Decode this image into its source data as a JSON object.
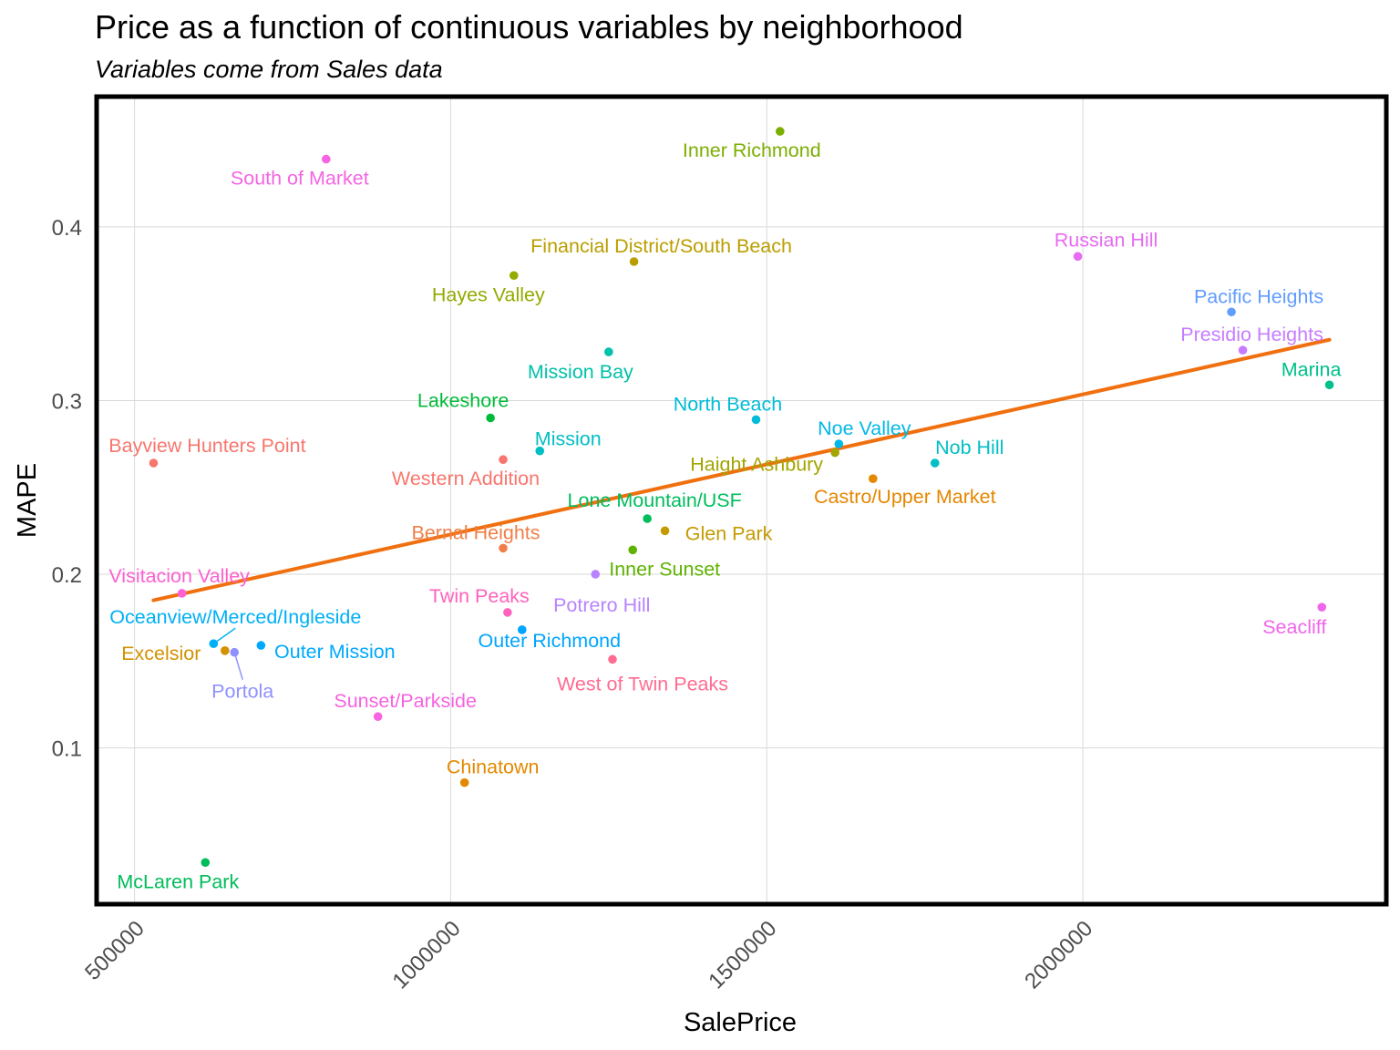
{
  "chart_data": {
    "type": "scatter",
    "title": "Price as a function of continuous variables by neighborhood",
    "subtitle": "Variables come from Sales data",
    "xlabel": "SalePrice",
    "ylabel": "MAPE",
    "xlim": [
      440000,
      2480000
    ],
    "ylim": [
      0.01,
      0.475
    ],
    "x_ticks": [
      500000,
      1000000,
      1500000,
      2000000
    ],
    "x_tick_labels": [
      "500000",
      "1000000",
      "1500000",
      "2000000"
    ],
    "y_ticks": [
      0.1,
      0.2,
      0.3,
      0.4
    ],
    "y_tick_labels": [
      "0.1",
      "0.2",
      "0.3",
      "0.4"
    ],
    "grid": true,
    "legend": "none",
    "trend_line": {
      "color": "#f07010",
      "x": [
        530000,
        2390000
      ],
      "y": [
        0.185,
        0.335
      ]
    },
    "points": [
      {
        "name": "Bayview Hunters Point",
        "x": 530000,
        "y": 0.264,
        "color": "#F8766D"
      },
      {
        "name": "Visitacion Valley",
        "x": 575000,
        "y": 0.189,
        "color": "#FD61D1"
      },
      {
        "name": "Oceanview/Merced/Ingleside",
        "x": 625000,
        "y": 0.16,
        "color": "#00B0F6"
      },
      {
        "name": "Excelsior",
        "x": 643000,
        "y": 0.156,
        "color": "#D39200"
      },
      {
        "name": "Portola",
        "x": 658000,
        "y": 0.155,
        "color": "#8F91FF"
      },
      {
        "name": "Outer Mission",
        "x": 700000,
        "y": 0.159,
        "color": "#00A9FF"
      },
      {
        "name": "McLaren Park",
        "x": 612000,
        "y": 0.034,
        "color": "#00BC59"
      },
      {
        "name": "South of Market",
        "x": 803000,
        "y": 0.439,
        "color": "#F564E3"
      },
      {
        "name": "Sunset/Parkside",
        "x": 885000,
        "y": 0.118,
        "color": "#F763E0"
      },
      {
        "name": "Chinatown",
        "x": 1022000,
        "y": 0.08,
        "color": "#E38900"
      },
      {
        "name": "Lakeshore",
        "x": 1063000,
        "y": 0.29,
        "color": "#00BA38"
      },
      {
        "name": "Western Addition",
        "x": 1083000,
        "y": 0.266,
        "color": "#F8766D"
      },
      {
        "name": "Bernal Heights",
        "x": 1083000,
        "y": 0.215,
        "color": "#EF7F49"
      },
      {
        "name": "Twin Peaks",
        "x": 1090000,
        "y": 0.178,
        "color": "#FF62BC"
      },
      {
        "name": "Hayes Valley",
        "x": 1100000,
        "y": 0.372,
        "color": "#93AA00"
      },
      {
        "name": "Outer Richmond",
        "x": 1113000,
        "y": 0.168,
        "color": "#00A5FF"
      },
      {
        "name": "Mission",
        "x": 1141000,
        "y": 0.271,
        "color": "#00BFC4"
      },
      {
        "name": "Potrero Hill",
        "x": 1229000,
        "y": 0.2,
        "color": "#B983FF"
      },
      {
        "name": "Mission Bay",
        "x": 1250000,
        "y": 0.328,
        "color": "#00C1AA"
      },
      {
        "name": "West of Twin Peaks",
        "x": 1256000,
        "y": 0.151,
        "color": "#FF6C91"
      },
      {
        "name": "Financial District/South Beach",
        "x": 1290000,
        "y": 0.38,
        "color": "#BA9E00"
      },
      {
        "name": "Inner Sunset",
        "x": 1288000,
        "y": 0.214,
        "color": "#5EB300"
      },
      {
        "name": "Lone Mountain/USF",
        "x": 1311000,
        "y": 0.232,
        "color": "#00BD5C"
      },
      {
        "name": "Glen Park",
        "x": 1339000,
        "y": 0.225,
        "color": "#C49A00"
      },
      {
        "name": "North Beach",
        "x": 1483000,
        "y": 0.289,
        "color": "#00BCD8"
      },
      {
        "name": "Inner Richmond",
        "x": 1521000,
        "y": 0.455,
        "color": "#7CAE00"
      },
      {
        "name": "Haight Ashbury",
        "x": 1608000,
        "y": 0.27,
        "color": "#A3A500"
      },
      {
        "name": "Noe Valley",
        "x": 1614000,
        "y": 0.275,
        "color": "#00B8E7"
      },
      {
        "name": "Castro/Upper Market",
        "x": 1668000,
        "y": 0.255,
        "color": "#E58700"
      },
      {
        "name": "Nob Hill",
        "x": 1766000,
        "y": 0.264,
        "color": "#00BFC4"
      },
      {
        "name": "Russian Hill",
        "x": 1992000,
        "y": 0.383,
        "color": "#E76BF3"
      },
      {
        "name": "Pacific Heights",
        "x": 2235000,
        "y": 0.351,
        "color": "#619CFF"
      },
      {
        "name": "Presidio Heights",
        "x": 2253000,
        "y": 0.329,
        "color": "#C77CFF"
      },
      {
        "name": "Seacliff",
        "x": 2378000,
        "y": 0.181,
        "color": "#F066EA"
      },
      {
        "name": "Marina",
        "x": 2390000,
        "y": 0.309,
        "color": "#00C08B"
      }
    ]
  }
}
